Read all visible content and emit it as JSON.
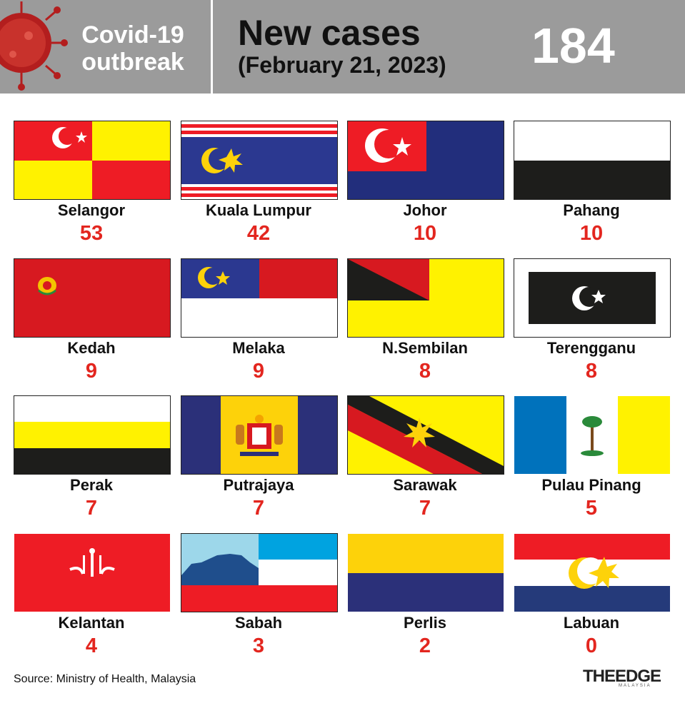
{
  "header": {
    "topic_line1": "Covid-19",
    "topic_line2": "outbreak",
    "title": "New cases",
    "date": "(February 21, 2023)",
    "total": "184"
  },
  "states": [
    {
      "name": "Selangor",
      "cases": "53"
    },
    {
      "name": "Kuala Lumpur",
      "cases": "42"
    },
    {
      "name": "Johor",
      "cases": "10"
    },
    {
      "name": "Pahang",
      "cases": "10"
    },
    {
      "name": "Kedah",
      "cases": "9"
    },
    {
      "name": "Melaka",
      "cases": "9"
    },
    {
      "name": "N.Sembilan",
      "cases": "8"
    },
    {
      "name": "Terengganu",
      "cases": "8"
    },
    {
      "name": "Perak",
      "cases": "7"
    },
    {
      "name": "Putrajaya",
      "cases": "7"
    },
    {
      "name": "Sarawak",
      "cases": "7"
    },
    {
      "name": "Pulau Pinang",
      "cases": "5"
    },
    {
      "name": "Kelantan",
      "cases": "4"
    },
    {
      "name": "Sabah",
      "cases": "3"
    },
    {
      "name": "Perlis",
      "cases": "2"
    },
    {
      "name": "Labuan",
      "cases": "0"
    }
  ],
  "footer": {
    "source": "Source: Ministry of Health, Malaysia",
    "logo_text": "THEEDGE",
    "logo_sub": "MALAYSIA"
  },
  "colors": {
    "header_bg": "#9b9b9b",
    "case_red": "#e3261f"
  }
}
